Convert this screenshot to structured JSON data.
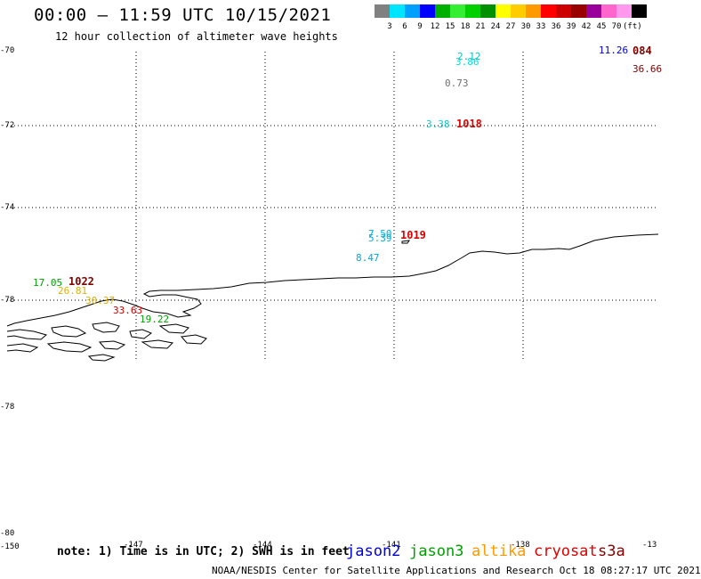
{
  "header": {
    "title": "00:00 – 11:59 UTC 10/15/2021",
    "subtitle": "12 hour collection of altimeter wave heights"
  },
  "scale": {
    "colors": [
      "#808080",
      "#00e5ff",
      "#00a0ff",
      "#0000ff",
      "#00b000",
      "#33ee33",
      "#00d000",
      "#009000",
      "#ffff00",
      "#ffcc00",
      "#ff9900",
      "#ff0000",
      "#cc0000",
      "#990000",
      "#990099",
      "#ff66cc",
      "#ff99ee",
      "#000000"
    ],
    "labels": [
      "3",
      "6",
      "9",
      "12",
      "15",
      "18",
      "21",
      "24",
      "27",
      "30",
      "33",
      "36",
      "39",
      "42",
      "45",
      "70",
      "(ft)"
    ]
  },
  "axes": {
    "y_labels": [
      "-70",
      "-72",
      "-74",
      "-78",
      "-78",
      "-80",
      "-150"
    ],
    "x_labels": [
      "-147",
      "-144",
      "-141",
      "-138",
      "-13"
    ]
  },
  "observations": [
    {
      "text": "2.12",
      "color": "#00c8c8"
    },
    {
      "text": "3.86",
      "color": "#00e0e0"
    },
    {
      "text": "0.73",
      "color": "#707070"
    },
    {
      "text": "11.26",
      "color": "#0000cc"
    },
    {
      "text": "36.66",
      "color": "#800000"
    },
    {
      "text": "3.38",
      "color": "#00d0d0"
    },
    {
      "text": "7.50",
      "color": "#00b0e0"
    },
    {
      "text": "5.39",
      "color": "#00b0e0"
    },
    {
      "text": "8.47",
      "color": "#00a8e0"
    },
    {
      "text": "17.05",
      "color": "#00a000"
    },
    {
      "text": "26.81",
      "color": "#e0b000"
    },
    {
      "text": "30.37",
      "color": "#e0b000"
    },
    {
      "text": "33.63",
      "color": "#d00000"
    },
    {
      "text": "19.22",
      "color": "#00a000"
    }
  ],
  "times": [
    {
      "text": "084",
      "color": "#800000"
    },
    {
      "text": "1018",
      "color": "#e00000"
    },
    {
      "text": "1019",
      "color": "#e00000"
    },
    {
      "text": "1022",
      "color": "#800000"
    }
  ],
  "footer": {
    "note": "note: 1) Time is in UTC; 2) SWH is in feet",
    "satellites": [
      {
        "name": "jason2",
        "color": "#0000dd"
      },
      {
        "name": "jason3",
        "color": "#00a000"
      },
      {
        "name": "altika",
        "color": "#ff9900"
      },
      {
        "name": "cryosat",
        "color": "#dd0000"
      },
      {
        "name": "s3a",
        "color": "#800000"
      }
    ],
    "credit": "NOAA/NESDIS Center for Satellite Applications and Research   Oct 18 08:27:17 UTC 2021"
  }
}
